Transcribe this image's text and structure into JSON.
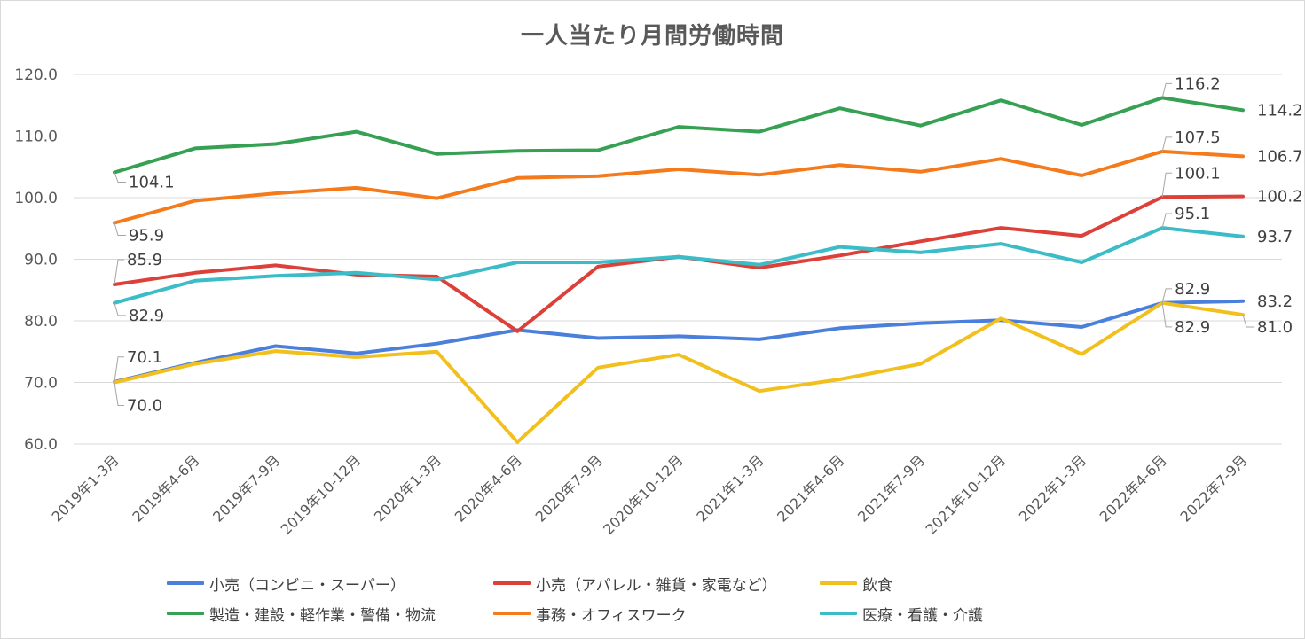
{
  "chart_data": {
    "type": "line",
    "title": "一人当たり月間労働時間",
    "xlabel": "",
    "ylabel": "",
    "ylim": [
      60,
      120
    ],
    "yticks": [
      "60.0",
      "70.0",
      "80.0",
      "90.0",
      "100.0",
      "110.0",
      "120.0"
    ],
    "grid": true,
    "legend_position": "bottom",
    "categories": [
      "2019年1-3月",
      "2019年4-6月",
      "2019年7-9月",
      "2019年10-12月",
      "2020年1-3月",
      "2020年4-6月",
      "2020年7-9月",
      "2020年10-12月",
      "2021年1-3月",
      "2021年4-6月",
      "2021年7-9月",
      "2021年10-12月",
      "2022年1-3月",
      "2022年4-6月",
      "2022年7-9月"
    ],
    "series": [
      {
        "name": "小売（コンビニ・スーパー）",
        "color": "#4a7fdc",
        "values": [
          70.1,
          73.2,
          75.9,
          74.7,
          76.3,
          78.5,
          77.2,
          77.5,
          77.0,
          78.8,
          79.6,
          80.1,
          79.0,
          82.9,
          83.2
        ],
        "labels": [
          "70.1",
          "",
          "",
          "",
          "",
          "",
          "",
          "",
          "",
          "",
          "",
          "",
          "",
          "82.9",
          "83.2"
        ]
      },
      {
        "name": "小売（アパレル・雑貨・家電など）",
        "color": "#dc4038",
        "values": [
          85.9,
          87.8,
          89.0,
          87.5,
          87.2,
          78.3,
          88.8,
          90.4,
          88.6,
          90.6,
          92.9,
          95.1,
          93.8,
          100.1,
          100.2
        ],
        "labels": [
          "85.9",
          "",
          "",
          "",
          "",
          "",
          "",
          "",
          "",
          "",
          "",
          "",
          "",
          "100.1",
          "100.2"
        ]
      },
      {
        "name": "飲食",
        "color": "#f2c01e",
        "values": [
          70.0,
          73.0,
          75.1,
          74.1,
          75.0,
          60.3,
          72.4,
          74.5,
          68.6,
          70.5,
          73.0,
          80.4,
          74.6,
          82.9,
          81.0
        ],
        "labels": [
          "70.0",
          "",
          "",
          "",
          "",
          "",
          "",
          "",
          "",
          "",
          "",
          "",
          "",
          "82.9",
          "81.0"
        ]
      },
      {
        "name": "製造・建設・軽作業・警備・物流",
        "color": "#36a152",
        "values": [
          104.1,
          108.0,
          108.7,
          110.7,
          107.1,
          107.6,
          107.7,
          111.5,
          110.7,
          114.5,
          111.7,
          115.8,
          111.8,
          116.2,
          114.2
        ],
        "labels": [
          "104.1",
          "",
          "",
          "",
          "",
          "",
          "",
          "",
          "",
          "",
          "",
          "",
          "",
          "116.2",
          "114.2"
        ]
      },
      {
        "name": "事務・オフィスワーク",
        "color": "#f57a1c",
        "values": [
          95.9,
          99.5,
          100.7,
          101.6,
          99.9,
          103.2,
          103.5,
          104.6,
          103.7,
          105.3,
          104.2,
          106.3,
          103.6,
          107.5,
          106.7
        ],
        "labels": [
          "95.9",
          "",
          "",
          "",
          "",
          "",
          "",
          "",
          "",
          "",
          "",
          "",
          "",
          "107.5",
          "106.7"
        ]
      },
      {
        "name": "医療・看護・介護",
        "color": "#3bbcc7",
        "values": [
          82.9,
          86.5,
          87.3,
          87.8,
          86.7,
          89.5,
          89.5,
          90.4,
          89.1,
          92.0,
          91.1,
          92.5,
          89.5,
          95.1,
          93.7
        ],
        "labels": [
          "82.9",
          "",
          "",
          "",
          "",
          "",
          "",
          "",
          "",
          "",
          "",
          "",
          "",
          "95.1",
          "93.7"
        ]
      }
    ]
  }
}
